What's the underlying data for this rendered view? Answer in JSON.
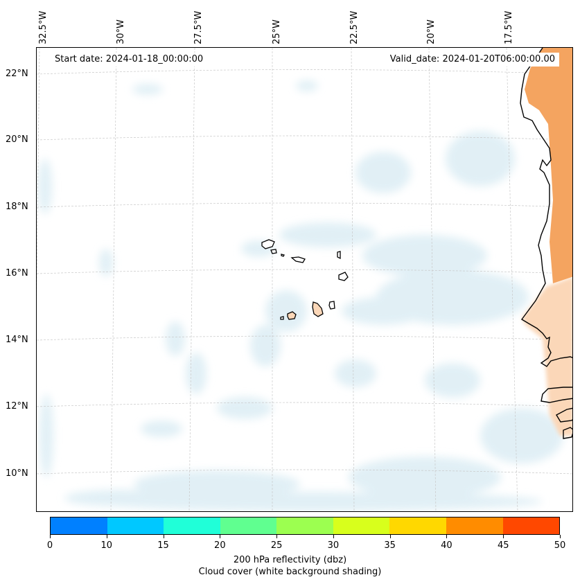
{
  "header": {
    "start_date": "Start date: 2024-01-18_00:00:00",
    "valid_date": "Valid_date: 2024-01-20T06:00:00.00"
  },
  "map": {
    "lon_labels": [
      "32.5°W",
      "30°W",
      "27.5°W",
      "25°W",
      "22.5°W",
      "20°W",
      "17.5°W"
    ],
    "lat_labels": [
      "22°N",
      "20°N",
      "18°N",
      "16°N",
      "14°N",
      "12°N",
      "10°N"
    ],
    "colors": {
      "land": "#f4a460",
      "land_light": "#fbd7b8",
      "cloud": "#dcedf4",
      "grid": "#c8c8c8",
      "coast": "#000000"
    }
  },
  "colorbar": {
    "ticks": [
      "0",
      "10",
      "15",
      "20",
      "25",
      "30",
      "35",
      "40",
      "45",
      "50"
    ],
    "colors": [
      "#0080ff",
      "#00c8ff",
      "#20ffd8",
      "#60ff90",
      "#9cff50",
      "#d8ff1c",
      "#ffd800",
      "#ff8c00",
      "#ff4800"
    ],
    "label_line1": "200 hPa reflectivity (dbz)",
    "label_line2": "Cloud cover (white background shading)"
  }
}
